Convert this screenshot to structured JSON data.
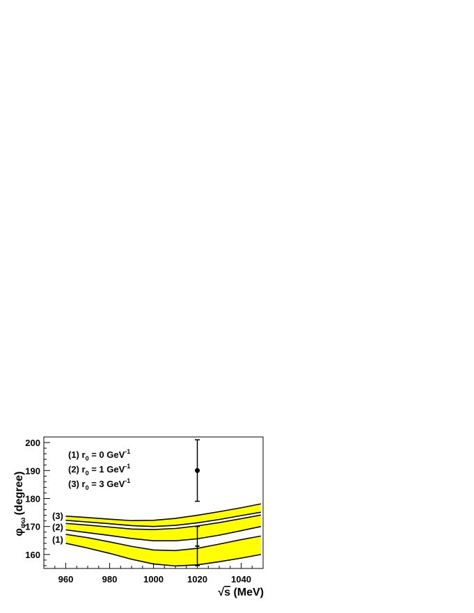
{
  "chart_data": {
    "type": "line",
    "xlabel": "√s (MeV)",
    "xlabel_parts": {
      "sqrt": "√",
      "var": "s",
      "unit": " (MeV)"
    },
    "ylabel": "φφω (degree)",
    "ylabel_parts": {
      "phi": "φ",
      "sub": "φω",
      "unit": "(degree)"
    },
    "xlim": [
      950,
      1050
    ],
    "ylim": [
      155,
      202
    ],
    "x_ticks": [
      960,
      980,
      1000,
      1020,
      1040
    ],
    "y_ticks": [
      160,
      170,
      180,
      190,
      200
    ],
    "band_color": "#ffff00",
    "legend": [
      {
        "id": "1",
        "prefix": "(1) r",
        "sub": "0",
        "mid": " = 0 GeV",
        "sup": "-1"
      },
      {
        "id": "2",
        "prefix": "(2) r",
        "sub": "0",
        "mid": " = 1 GeV",
        "sup": "-1"
      },
      {
        "id": "3",
        "prefix": "(3) r",
        "sub": "0",
        "mid": " = 3 GeV",
        "sup": "-1"
      }
    ],
    "series": [
      {
        "label": "(1)",
        "x": [
          960,
          970,
          980,
          990,
          1000,
          1010,
          1020,
          1030,
          1040,
          1049
        ],
        "upper": [
          167.2,
          166.0,
          164.5,
          162.9,
          161.6,
          161.4,
          162.2,
          163.7,
          165.3,
          166.6
        ],
        "lower": [
          164.0,
          162.3,
          160.4,
          158.3,
          156.6,
          155.9,
          156.3,
          157.4,
          158.7,
          160.0
        ]
      },
      {
        "label": "(2)",
        "x": [
          960,
          970,
          980,
          990,
          1000,
          1010,
          1020,
          1030,
          1040,
          1049
        ],
        "upper": [
          171.1,
          170.5,
          169.8,
          169.1,
          168.9,
          169.3,
          170.2,
          171.4,
          172.8,
          174.1
        ],
        "lower": [
          168.8,
          167.8,
          166.8,
          165.7,
          164.9,
          164.9,
          165.6,
          166.9,
          168.5,
          170.0
        ]
      },
      {
        "label": "(3)",
        "x": [
          960,
          970,
          980,
          990,
          1000,
          1010,
          1020,
          1030,
          1040,
          1049
        ],
        "upper": [
          173.7,
          173.2,
          172.6,
          172.1,
          172.2,
          172.9,
          174.0,
          175.3,
          176.7,
          178.1
        ],
        "lower": [
          172.2,
          171.6,
          171.0,
          170.3,
          170.0,
          170.4,
          171.3,
          172.5,
          173.9,
          175.1
        ]
      }
    ],
    "points": [
      {
        "x": 1020,
        "y": 190,
        "y_err_low": 179,
        "y_err_high": 201,
        "marker": "circle"
      },
      {
        "x": 1020,
        "y": 163,
        "y_err_low": 156,
        "y_err_high": 170,
        "marker": "bar"
      }
    ]
  }
}
